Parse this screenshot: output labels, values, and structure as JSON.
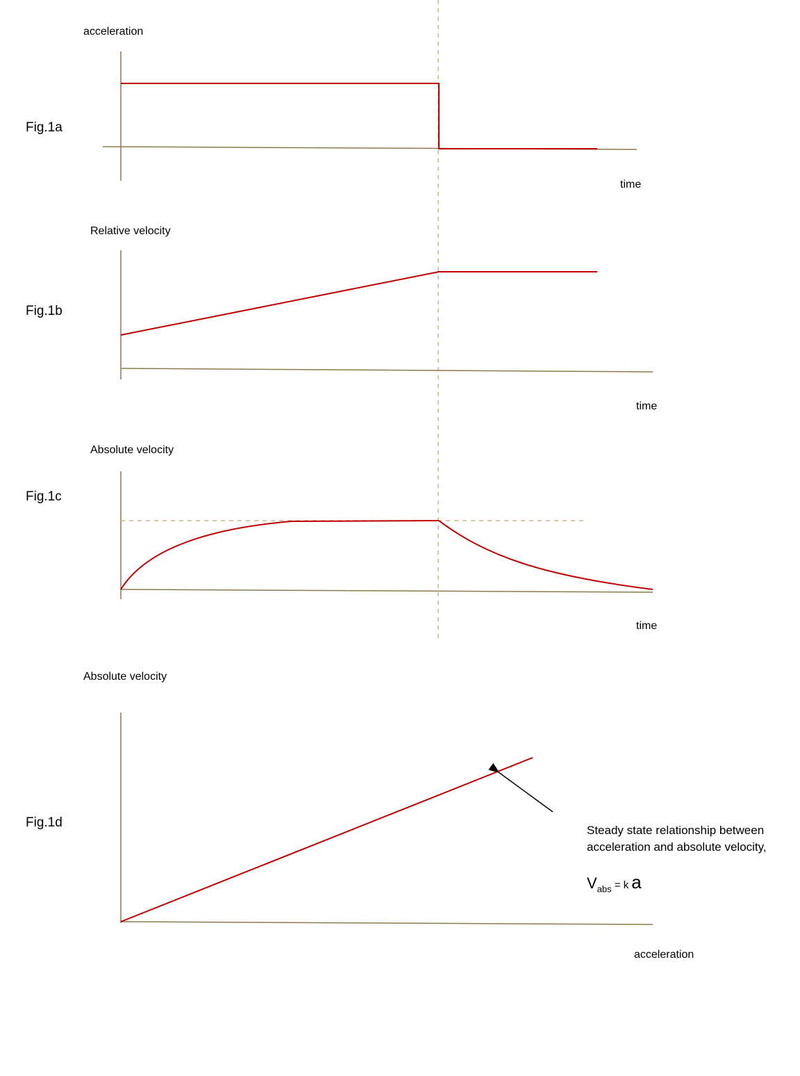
{
  "colors": {
    "axis": "#8c7b4f",
    "curve": "#c00000",
    "guide": "#c8b48a",
    "arrow": "#000000",
    "text": "#000000"
  },
  "figures": [
    {
      "label": "Fig.1a",
      "y_axis_label": "acceleration",
      "x_axis_label": "time"
    },
    {
      "label": "Fig.1b",
      "y_axis_label": "Relative velocity",
      "x_axis_label": "time"
    },
    {
      "label": "Fig.1c",
      "y_axis_label": "Absolute velocity",
      "x_axis_label": "time"
    },
    {
      "label": "Fig.1d",
      "y_axis_label": "Absolute velocity",
      "x_axis_label": "acceleration"
    }
  ],
  "annotation": {
    "line1": "Steady state relationship between",
    "line2": "acceleration and absolute velocity,"
  },
  "equation": {
    "lhs": "V",
    "lhs_sub": "abs",
    "equals": " = ",
    "coef": "k",
    "rhs": "a"
  }
}
